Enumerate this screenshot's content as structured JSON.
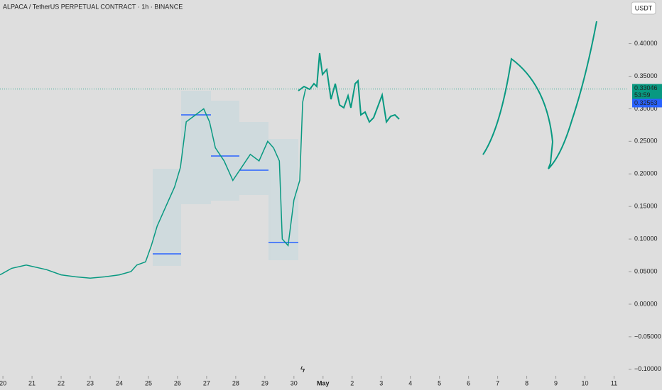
{
  "chart_data": {
    "type": "line",
    "title": "ALPACA / TetherUS PERPETUAL CONTRACT · 1h · BINANCE",
    "currency_button": "USDT",
    "x": [
      19.9,
      20.3,
      20.8,
      21.5,
      22,
      22.5,
      23,
      23.5,
      24,
      24.4,
      24.6,
      24.9,
      25.1,
      25.3,
      25.6,
      25.9,
      26.1,
      26.3,
      26.6,
      26.9,
      27.1,
      27.3,
      27.6,
      27.9,
      28.2,
      28.5,
      28.8,
      29.1,
      29.3,
      29.5,
      29.6,
      29.8,
      30.0,
      30.2,
      30.3,
      30.4
    ],
    "values": [
      0.045,
      0.055,
      0.06,
      0.053,
      0.045,
      0.042,
      0.04,
      0.042,
      0.045,
      0.05,
      0.06,
      0.065,
      0.09,
      0.12,
      0.15,
      0.18,
      0.21,
      0.28,
      0.29,
      0.3,
      0.28,
      0.24,
      0.22,
      0.19,
      0.21,
      0.23,
      0.22,
      0.25,
      0.24,
      0.22,
      0.1,
      0.09,
      0.16,
      0.19,
      0.31,
      0.33046
    ],
    "color": "#089981",
    "last_price": 0.33046,
    "countdown": "53:59",
    "mark_price": 0.32563,
    "xlim": [
      19.9,
      41.5
    ],
    "ylim": [
      -0.11,
      0.467
    ],
    "xticks": [
      20,
      21,
      22,
      23,
      24,
      25,
      26,
      27,
      28,
      29,
      30,
      {
        "value": 31,
        "label": "May"
      },
      {
        "value": 32,
        "label": "2"
      },
      {
        "value": 33,
        "label": "3"
      },
      {
        "value": 34,
        "label": "4"
      },
      {
        "value": 35,
        "label": "5"
      },
      {
        "value": 36,
        "label": "6"
      },
      {
        "value": 37,
        "label": "7"
      },
      {
        "value": 38,
        "label": "8"
      },
      {
        "value": 39,
        "label": "9"
      },
      {
        "value": 40,
        "label": "10"
      },
      {
        "value": 41,
        "label": "11"
      }
    ],
    "yticks": [
      {
        "value": -0.1,
        "label": "−0.10000"
      },
      {
        "value": -0.05,
        "label": "−0.05000"
      },
      {
        "value": 0,
        "label": "0.00000"
      },
      {
        "value": 0.05,
        "label": "0.05000"
      },
      {
        "value": 0.1,
        "label": "0.10000"
      },
      {
        "value": 0.15,
        "label": "0.15000"
      },
      {
        "value": 0.2,
        "label": "0.20000"
      },
      {
        "value": 0.25,
        "label": "0.25000"
      },
      {
        "value": 0.3,
        "label": "0.30000"
      },
      {
        "value": 0.35,
        "label": "0.35000"
      },
      {
        "value": 0.4,
        "label": "0.40000"
      }
    ]
  }
}
